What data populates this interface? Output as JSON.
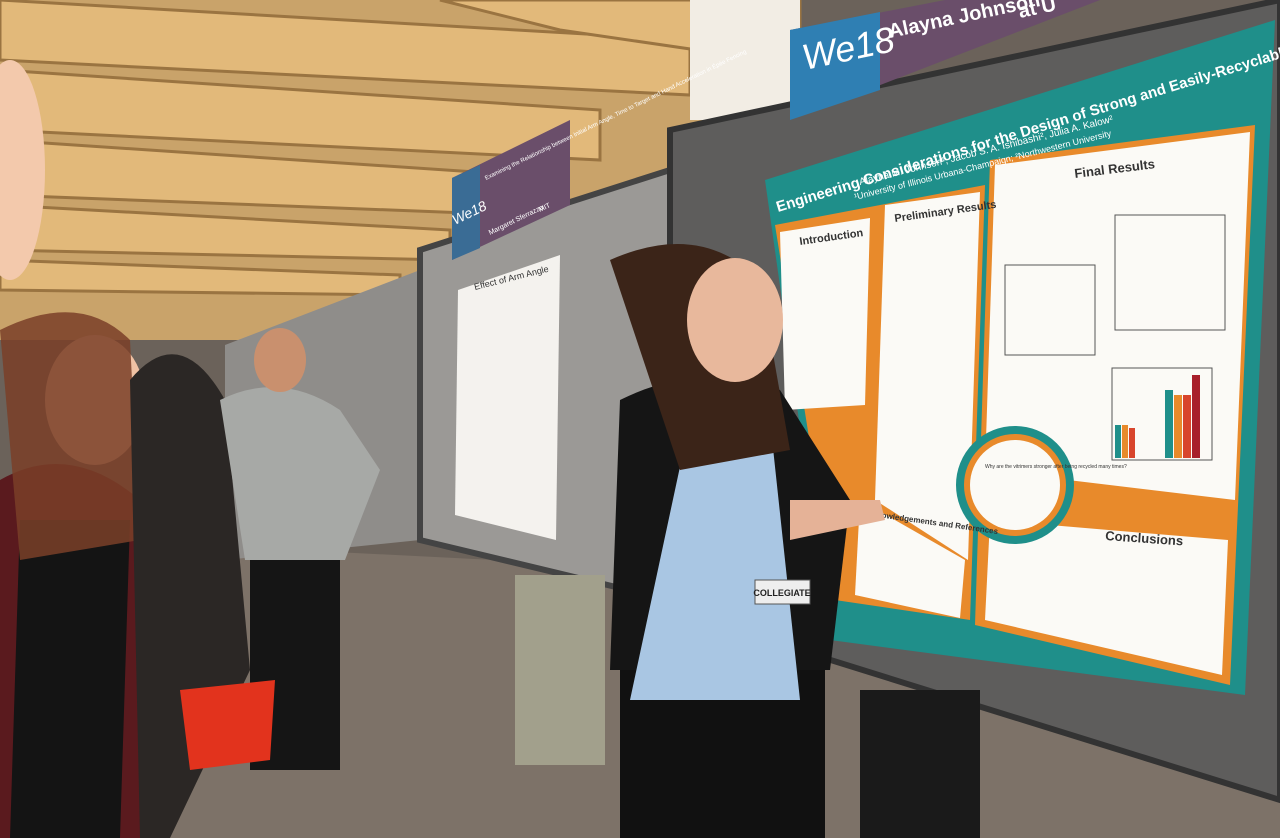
{
  "sign": {
    "logo": "We18",
    "presenter": "Alayna Johnson",
    "affiliation_partial": "at U"
  },
  "poster": {
    "title": "Engineering Considerations for the Design of Strong and Easily-Recyclable Plastics",
    "authors": "Alayna M. Johnson¹, Jacob S. A. Ishibashi², Julia A. Kalow²",
    "affiliations": "¹University of Illinois Urbana-Champaign; ²Northwestern University",
    "sections": [
      "Introduction",
      "Preliminary Results",
      "Final Results",
      "Conclusions",
      "Acknowledgements and References"
    ],
    "question": "Why are the vitrimers stronger after being recycled many times?"
  },
  "badge": "COLLEGIATE",
  "far_sign": {
    "logo": "We18",
    "title": "Examining the Relationship between Initial Arm Angle, Time to Target and Hand Acceleration in Épée Fencing",
    "author": "Margaret Sferrazza",
    "school": "MIT"
  },
  "far_poster": {
    "title": "Effect of Arm Angle"
  }
}
